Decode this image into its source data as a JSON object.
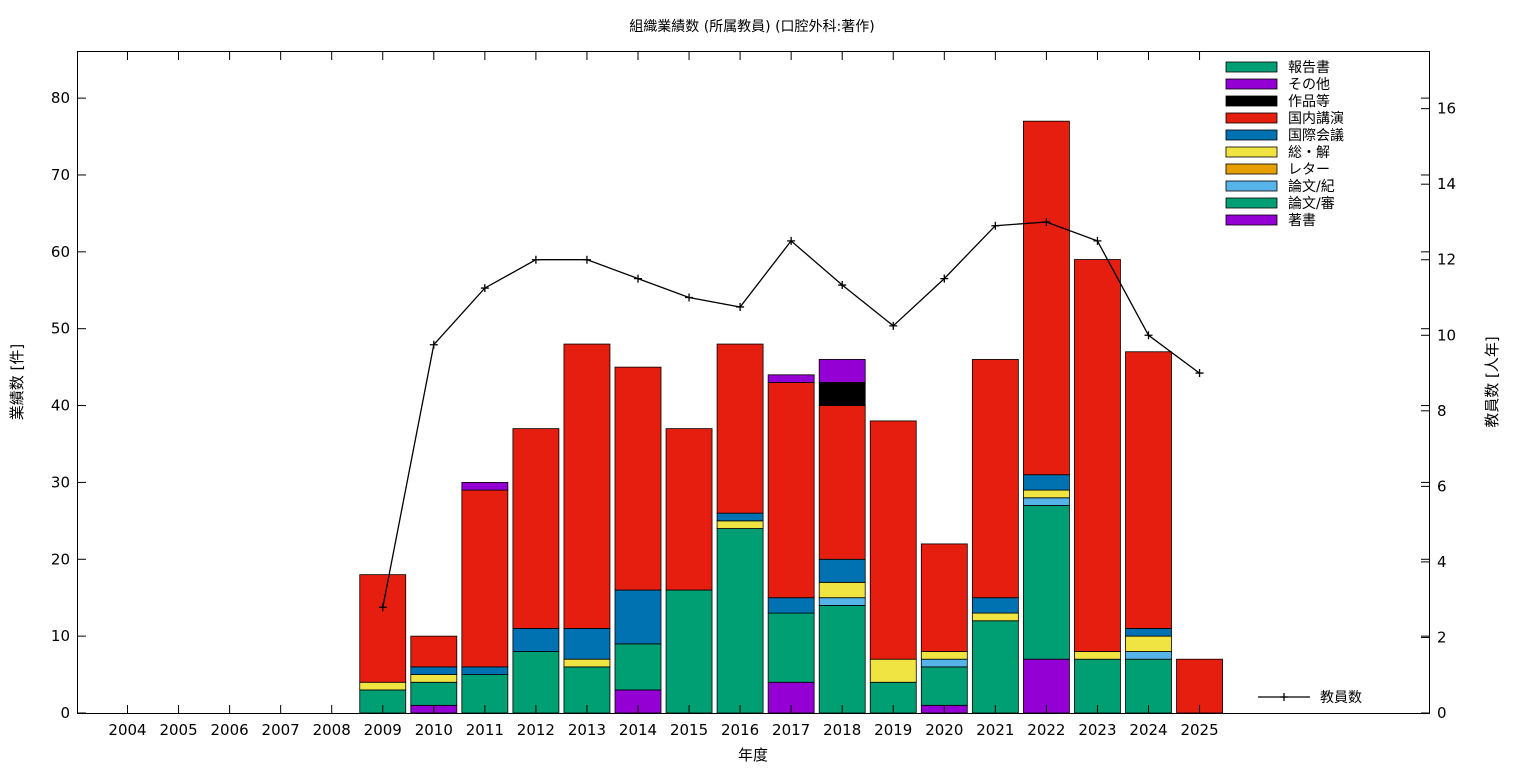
{
  "chart_data": {
    "type": "bar",
    "title": "組織業績数 (所属教員) (口腔外科:著作)",
    "xlabel": "年度",
    "ylabel": "業績数 [件]",
    "y2label": "教員数 [人年]",
    "ylim": [
      0,
      86
    ],
    "y2lim": [
      0,
      17.5
    ],
    "yticks": [
      0,
      10,
      20,
      30,
      40,
      50,
      60,
      70,
      80
    ],
    "y2ticks": [
      0,
      2,
      4,
      6,
      8,
      10,
      12,
      14,
      16
    ],
    "grid": false,
    "legend_position": "top-right",
    "categories": [
      "2004",
      "2005",
      "2006",
      "2007",
      "2008",
      "2009",
      "2010",
      "2011",
      "2012",
      "2013",
      "2014",
      "2015",
      "2016",
      "2017",
      "2018",
      "2019",
      "2020",
      "2021",
      "2022",
      "2023",
      "2024",
      "2025"
    ],
    "stack_order": [
      "著書",
      "論文/審",
      "論文/紀",
      "レター",
      "総・解",
      "国際会議",
      "国内講演",
      "作品等",
      "その他",
      "報告書"
    ],
    "series": [
      {
        "name": "報告書",
        "color": "#009e73",
        "values": [
          0,
          0,
          0,
          0,
          0,
          0,
          0,
          0,
          0,
          0,
          0,
          0,
          0,
          0,
          0,
          0,
          0,
          0,
          0,
          0,
          0,
          0
        ]
      },
      {
        "name": "その他",
        "color": "#9400d3",
        "values": [
          0,
          0,
          0,
          0,
          0,
          0,
          0,
          1,
          0,
          0,
          0,
          0,
          0,
          1,
          3,
          0,
          0,
          0,
          0,
          0,
          0,
          0
        ]
      },
      {
        "name": "作品等",
        "color": "#000000",
        "values": [
          0,
          0,
          0,
          0,
          0,
          0,
          0,
          0,
          0,
          0,
          0,
          0,
          0,
          0,
          3,
          0,
          0,
          0,
          0,
          0,
          0,
          0
        ]
      },
      {
        "name": "国内講演",
        "color": "#e51e10",
        "values": [
          0,
          0,
          0,
          0,
          0,
          14,
          4,
          23,
          26,
          37,
          29,
          21,
          22,
          28,
          20,
          31,
          14,
          31,
          46,
          51,
          36,
          7
        ]
      },
      {
        "name": "国際会議",
        "color": "#0072b2",
        "values": [
          0,
          0,
          0,
          0,
          0,
          0,
          1,
          1,
          3,
          4,
          7,
          0,
          1,
          2,
          3,
          0,
          0,
          2,
          2,
          0,
          1,
          0
        ]
      },
      {
        "name": "総・解",
        "color": "#f0e442",
        "values": [
          0,
          0,
          0,
          0,
          0,
          1,
          1,
          0,
          0,
          1,
          0,
          0,
          1,
          0,
          2,
          3,
          1,
          1,
          1,
          1,
          2,
          0
        ]
      },
      {
        "name": "レター",
        "color": "#e69f00",
        "values": [
          0,
          0,
          0,
          0,
          0,
          0,
          0,
          0,
          0,
          0,
          0,
          0,
          0,
          0,
          0,
          0,
          0,
          0,
          0,
          0,
          0,
          0
        ]
      },
      {
        "name": "論文/紀",
        "color": "#56b4e9",
        "values": [
          0,
          0,
          0,
          0,
          0,
          0,
          0,
          0,
          0,
          0,
          0,
          0,
          0,
          0,
          1,
          0,
          1,
          0,
          1,
          0,
          1,
          0
        ]
      },
      {
        "name": "論文/審",
        "color": "#009e73",
        "values": [
          0,
          0,
          0,
          0,
          0,
          3,
          3,
          5,
          8,
          6,
          6,
          16,
          24,
          9,
          14,
          4,
          5,
          12,
          20,
          7,
          7,
          0
        ]
      },
      {
        "name": "著書",
        "color": "#9400d3",
        "values": [
          0,
          0,
          0,
          0,
          0,
          0,
          1,
          0,
          0,
          0,
          3,
          0,
          0,
          4,
          0,
          0,
          1,
          0,
          7,
          0,
          0,
          0
        ]
      }
    ],
    "line_series": {
      "name": "教員数",
      "color": "#000000",
      "axis": "y2",
      "values": [
        null,
        null,
        null,
        null,
        null,
        2.8,
        9.75,
        11.25,
        12.0,
        12.0,
        11.5,
        11.0,
        10.75,
        12.5,
        11.33,
        10.25,
        11.5,
        12.9,
        13.0,
        12.5,
        10.0,
        9.0
      ]
    }
  }
}
